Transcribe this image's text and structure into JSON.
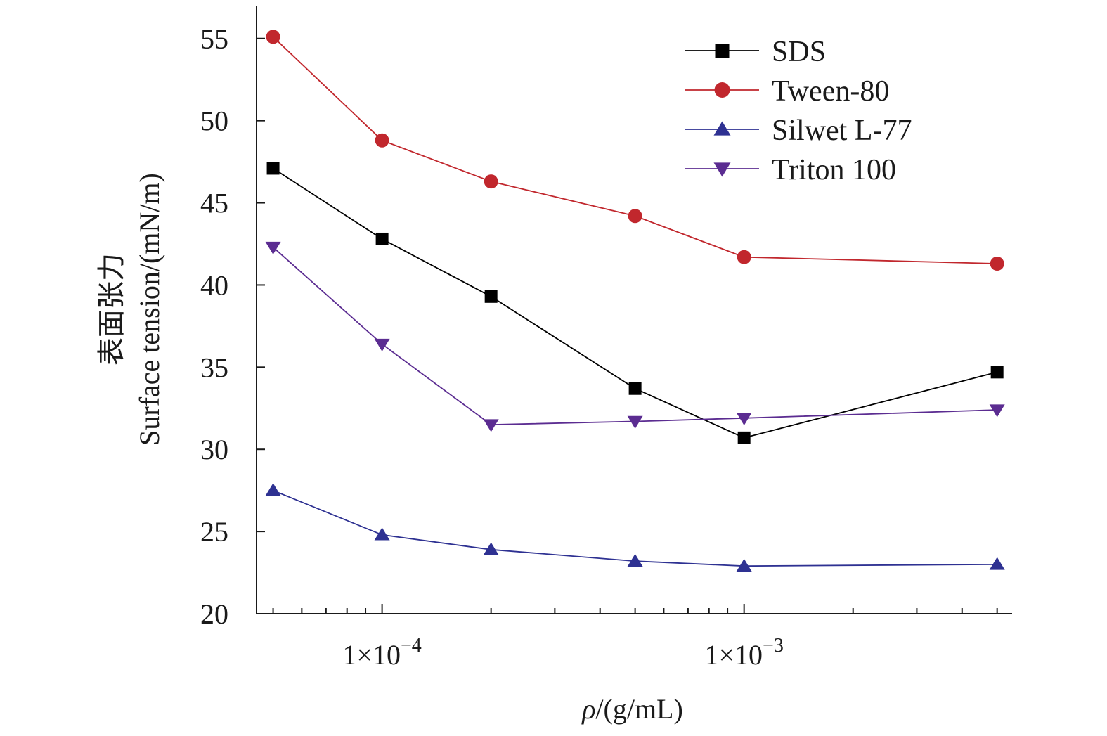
{
  "chart_data": {
    "type": "line",
    "xscale": "log",
    "xlabel_symbol": "ρ",
    "xlabel_unit": "/(g/mL)",
    "ylabel_cn": "表面张力",
    "ylabel_en": "Surface tension/(mN/m)",
    "xlim": [
      4.5e-05,
      0.0055
    ],
    "ylim": [
      20,
      57
    ],
    "yticks": [
      20,
      25,
      30,
      35,
      40,
      45,
      50,
      55
    ],
    "ytick_labels": [
      "20",
      "25",
      "30",
      "35",
      "40",
      "45",
      "50",
      "55"
    ],
    "xtick_major": [
      0.0001,
      0.001
    ],
    "xtick_labels": [
      {
        "mantissa": "1×10",
        "exponent": "−4"
      },
      {
        "mantissa": "1×10",
        "exponent": "−3"
      }
    ],
    "x": [
      5e-05,
      0.0001,
      0.0002,
      0.0005,
      0.001,
      0.005
    ],
    "legend_position": "top-right",
    "series": [
      {
        "name": "SDS",
        "color": "#000000",
        "marker": "square",
        "values": [
          47.1,
          42.8,
          39.3,
          33.7,
          30.7,
          34.7
        ]
      },
      {
        "name": "Tween-80",
        "color": "#c1272d",
        "marker": "circle",
        "values": [
          55.1,
          48.8,
          46.3,
          44.2,
          41.7,
          41.3
        ]
      },
      {
        "name": "Silwet L-77",
        "color": "#2e3192",
        "marker": "triangle-up",
        "values": [
          27.5,
          24.8,
          23.9,
          23.2,
          22.9,
          23.0
        ]
      },
      {
        "name": "Triton 100",
        "color": "#5b2c91",
        "marker": "triangle-down",
        "values": [
          42.3,
          36.4,
          31.5,
          31.7,
          31.9,
          32.4
        ]
      }
    ]
  }
}
